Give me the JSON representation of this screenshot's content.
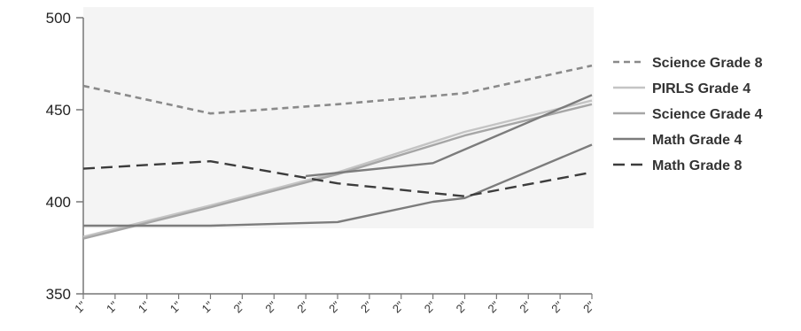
{
  "chart_data": {
    "type": "line",
    "x": [
      1,
      2,
      3,
      4,
      5,
      6,
      7,
      8,
      9,
      10,
      11,
      12,
      13,
      14,
      15,
      16,
      17
    ],
    "x_tick_labels": [
      "1\"",
      "1\"",
      "1\"",
      "1\"",
      "1\"",
      "2\"",
      "2\"",
      "2\"",
      "2\"",
      "2\"",
      "2\"",
      "2\"",
      "2\"",
      "2\"",
      "2\"",
      "2\"",
      "2\""
    ],
    "ylim": [
      350,
      500
    ],
    "y_ticks": [
      350,
      400,
      450,
      500
    ],
    "grid": false,
    "legend_position": "right",
    "series": [
      {
        "name": "Science Grade 8",
        "color": "#8a8a8a",
        "dash": "dashed",
        "x": [
          1,
          5,
          9,
          13,
          17
        ],
        "values": [
          463,
          448,
          453,
          459,
          474
        ]
      },
      {
        "name": "PIRLS Grade 4",
        "color": "#c4c4c4",
        "dash": "solid",
        "x": [
          1,
          5,
          9,
          13,
          17
        ],
        "values": [
          381,
          398,
          416,
          438,
          455
        ]
      },
      {
        "name": "Science Grade 4",
        "color": "#a6a6a6",
        "dash": "solid",
        "x": [
          1,
          5,
          9,
          13,
          17
        ],
        "values": [
          380,
          397,
          415,
          436,
          453
        ]
      },
      {
        "name": "Math Grade 4",
        "color": "#7c7c7c",
        "dash": "solid",
        "x": [
          1,
          5,
          9,
          12,
          13,
          17
        ],
        "values": [
          387,
          387,
          389,
          400,
          402,
          431
        ]
      },
      {
        "name": "Math Grade 4",
        "color": "#7c7c7c",
        "dash": "solid",
        "x": [
          8,
          12,
          17
        ],
        "values": [
          414,
          421,
          458
        ],
        "in_legend": false
      },
      {
        "name": "Math Grade 8",
        "color": "#3c3c3c",
        "dash": "longdash",
        "x": [
          1,
          5,
          9,
          13,
          17
        ],
        "values": [
          418,
          422,
          410,
          403,
          416
        ]
      }
    ]
  }
}
